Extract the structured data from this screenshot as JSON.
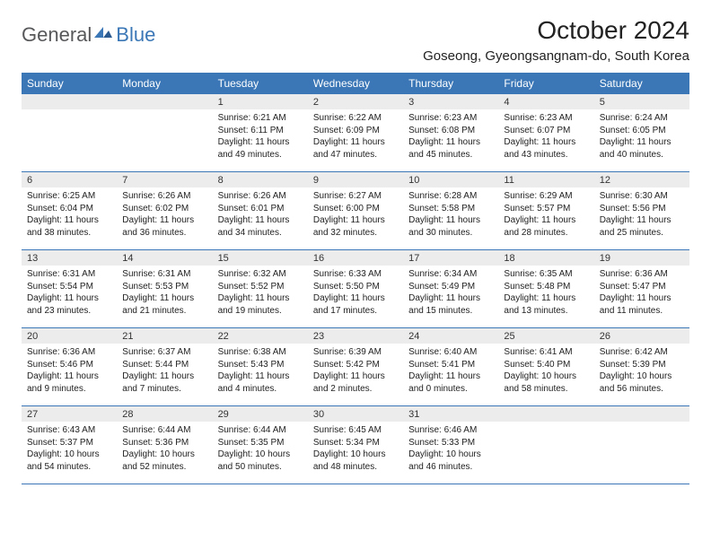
{
  "brand": {
    "part1": "General",
    "part2": "Blue"
  },
  "header": {
    "title": "October 2024",
    "location": "Goseong, Gyeongsangnam-do, South Korea"
  },
  "colors": {
    "header_bg": "#3b77b6",
    "daynum_bg": "#ececec",
    "text": "#222222",
    "logo_gray": "#57585a"
  },
  "day_names": [
    "Sunday",
    "Monday",
    "Tuesday",
    "Wednesday",
    "Thursday",
    "Friday",
    "Saturday"
  ],
  "weeks": [
    [
      null,
      null,
      {
        "n": "1",
        "sr": "Sunrise: 6:21 AM",
        "ss": "Sunset: 6:11 PM",
        "d1": "Daylight: 11 hours",
        "d2": "and 49 minutes."
      },
      {
        "n": "2",
        "sr": "Sunrise: 6:22 AM",
        "ss": "Sunset: 6:09 PM",
        "d1": "Daylight: 11 hours",
        "d2": "and 47 minutes."
      },
      {
        "n": "3",
        "sr": "Sunrise: 6:23 AM",
        "ss": "Sunset: 6:08 PM",
        "d1": "Daylight: 11 hours",
        "d2": "and 45 minutes."
      },
      {
        "n": "4",
        "sr": "Sunrise: 6:23 AM",
        "ss": "Sunset: 6:07 PM",
        "d1": "Daylight: 11 hours",
        "d2": "and 43 minutes."
      },
      {
        "n": "5",
        "sr": "Sunrise: 6:24 AM",
        "ss": "Sunset: 6:05 PM",
        "d1": "Daylight: 11 hours",
        "d2": "and 40 minutes."
      }
    ],
    [
      {
        "n": "6",
        "sr": "Sunrise: 6:25 AM",
        "ss": "Sunset: 6:04 PM",
        "d1": "Daylight: 11 hours",
        "d2": "and 38 minutes."
      },
      {
        "n": "7",
        "sr": "Sunrise: 6:26 AM",
        "ss": "Sunset: 6:02 PM",
        "d1": "Daylight: 11 hours",
        "d2": "and 36 minutes."
      },
      {
        "n": "8",
        "sr": "Sunrise: 6:26 AM",
        "ss": "Sunset: 6:01 PM",
        "d1": "Daylight: 11 hours",
        "d2": "and 34 minutes."
      },
      {
        "n": "9",
        "sr": "Sunrise: 6:27 AM",
        "ss": "Sunset: 6:00 PM",
        "d1": "Daylight: 11 hours",
        "d2": "and 32 minutes."
      },
      {
        "n": "10",
        "sr": "Sunrise: 6:28 AM",
        "ss": "Sunset: 5:58 PM",
        "d1": "Daylight: 11 hours",
        "d2": "and 30 minutes."
      },
      {
        "n": "11",
        "sr": "Sunrise: 6:29 AM",
        "ss": "Sunset: 5:57 PM",
        "d1": "Daylight: 11 hours",
        "d2": "and 28 minutes."
      },
      {
        "n": "12",
        "sr": "Sunrise: 6:30 AM",
        "ss": "Sunset: 5:56 PM",
        "d1": "Daylight: 11 hours",
        "d2": "and 25 minutes."
      }
    ],
    [
      {
        "n": "13",
        "sr": "Sunrise: 6:31 AM",
        "ss": "Sunset: 5:54 PM",
        "d1": "Daylight: 11 hours",
        "d2": "and 23 minutes."
      },
      {
        "n": "14",
        "sr": "Sunrise: 6:31 AM",
        "ss": "Sunset: 5:53 PM",
        "d1": "Daylight: 11 hours",
        "d2": "and 21 minutes."
      },
      {
        "n": "15",
        "sr": "Sunrise: 6:32 AM",
        "ss": "Sunset: 5:52 PM",
        "d1": "Daylight: 11 hours",
        "d2": "and 19 minutes."
      },
      {
        "n": "16",
        "sr": "Sunrise: 6:33 AM",
        "ss": "Sunset: 5:50 PM",
        "d1": "Daylight: 11 hours",
        "d2": "and 17 minutes."
      },
      {
        "n": "17",
        "sr": "Sunrise: 6:34 AM",
        "ss": "Sunset: 5:49 PM",
        "d1": "Daylight: 11 hours",
        "d2": "and 15 minutes."
      },
      {
        "n": "18",
        "sr": "Sunrise: 6:35 AM",
        "ss": "Sunset: 5:48 PM",
        "d1": "Daylight: 11 hours",
        "d2": "and 13 minutes."
      },
      {
        "n": "19",
        "sr": "Sunrise: 6:36 AM",
        "ss": "Sunset: 5:47 PM",
        "d1": "Daylight: 11 hours",
        "d2": "and 11 minutes."
      }
    ],
    [
      {
        "n": "20",
        "sr": "Sunrise: 6:36 AM",
        "ss": "Sunset: 5:46 PM",
        "d1": "Daylight: 11 hours",
        "d2": "and 9 minutes."
      },
      {
        "n": "21",
        "sr": "Sunrise: 6:37 AM",
        "ss": "Sunset: 5:44 PM",
        "d1": "Daylight: 11 hours",
        "d2": "and 7 minutes."
      },
      {
        "n": "22",
        "sr": "Sunrise: 6:38 AM",
        "ss": "Sunset: 5:43 PM",
        "d1": "Daylight: 11 hours",
        "d2": "and 4 minutes."
      },
      {
        "n": "23",
        "sr": "Sunrise: 6:39 AM",
        "ss": "Sunset: 5:42 PM",
        "d1": "Daylight: 11 hours",
        "d2": "and 2 minutes."
      },
      {
        "n": "24",
        "sr": "Sunrise: 6:40 AM",
        "ss": "Sunset: 5:41 PM",
        "d1": "Daylight: 11 hours",
        "d2": "and 0 minutes."
      },
      {
        "n": "25",
        "sr": "Sunrise: 6:41 AM",
        "ss": "Sunset: 5:40 PM",
        "d1": "Daylight: 10 hours",
        "d2": "and 58 minutes."
      },
      {
        "n": "26",
        "sr": "Sunrise: 6:42 AM",
        "ss": "Sunset: 5:39 PM",
        "d1": "Daylight: 10 hours",
        "d2": "and 56 minutes."
      }
    ],
    [
      {
        "n": "27",
        "sr": "Sunrise: 6:43 AM",
        "ss": "Sunset: 5:37 PM",
        "d1": "Daylight: 10 hours",
        "d2": "and 54 minutes."
      },
      {
        "n": "28",
        "sr": "Sunrise: 6:44 AM",
        "ss": "Sunset: 5:36 PM",
        "d1": "Daylight: 10 hours",
        "d2": "and 52 minutes."
      },
      {
        "n": "29",
        "sr": "Sunrise: 6:44 AM",
        "ss": "Sunset: 5:35 PM",
        "d1": "Daylight: 10 hours",
        "d2": "and 50 minutes."
      },
      {
        "n": "30",
        "sr": "Sunrise: 6:45 AM",
        "ss": "Sunset: 5:34 PM",
        "d1": "Daylight: 10 hours",
        "d2": "and 48 minutes."
      },
      {
        "n": "31",
        "sr": "Sunrise: 6:46 AM",
        "ss": "Sunset: 5:33 PM",
        "d1": "Daylight: 10 hours",
        "d2": "and 46 minutes."
      },
      null,
      null
    ]
  ]
}
